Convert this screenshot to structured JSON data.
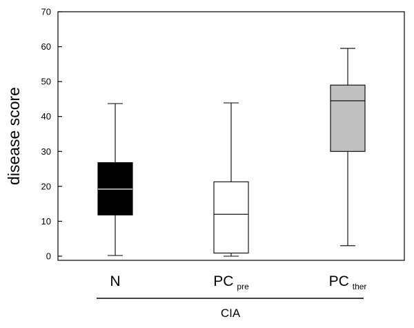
{
  "chart_data": {
    "type": "box",
    "ylabel": "disease score",
    "ylim": [
      0,
      70
    ],
    "yticks": [
      0,
      10,
      20,
      30,
      40,
      50,
      60,
      70
    ],
    "grid": false,
    "group_label": "CIA",
    "categories": [
      {
        "main": "N",
        "sub": "",
        "whisker_low": 0.2,
        "q1": 11.8,
        "median": 19.2,
        "q3": 26.8,
        "whisker_high": 43.7,
        "fill": "#000000",
        "median_color": "#ffffff"
      },
      {
        "main": "PC",
        "sub": "pre",
        "whisker_low": 0.0,
        "q1": 0.9,
        "median": 12.0,
        "q3": 21.3,
        "whisker_high": 43.9,
        "fill": "#ffffff",
        "median_color": "#000000"
      },
      {
        "main": "PC",
        "sub": "ther",
        "whisker_low": 3.0,
        "q1": 30.0,
        "median": 44.5,
        "q3": 49.0,
        "whisker_high": 59.5,
        "fill": "#c0c0c0",
        "median_color": "#000000"
      }
    ]
  }
}
